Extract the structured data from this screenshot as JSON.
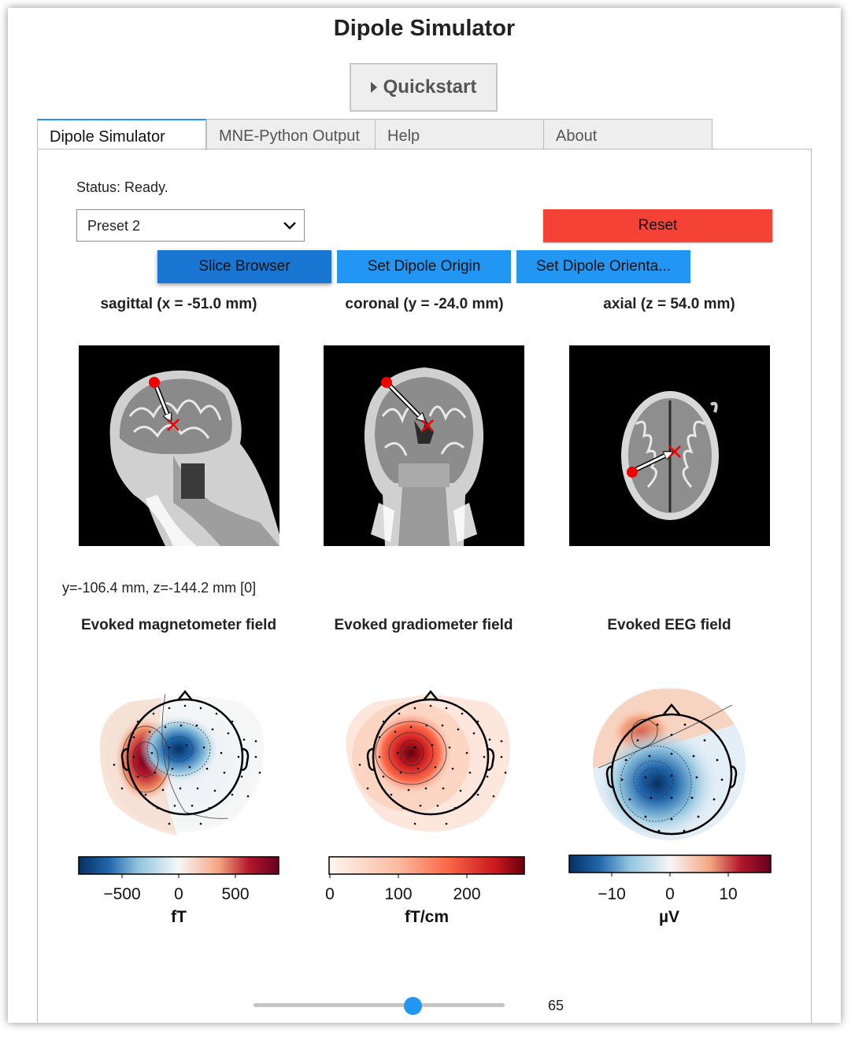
{
  "app": {
    "title": "Dipole Simulator"
  },
  "quickstart": {
    "label": "Quickstart"
  },
  "tabs": [
    {
      "label": "Dipole Simulator"
    },
    {
      "label": "MNE-Python Output"
    },
    {
      "label": "Help"
    },
    {
      "label": "About"
    }
  ],
  "status": {
    "text": "Status: Ready."
  },
  "preset": {
    "selected": "Preset 2"
  },
  "buttons": {
    "reset": "Reset",
    "slice_browser": "Slice Browser",
    "set_origin": "Set Dipole Origin",
    "set_orientation": "Set Dipole Orienta..."
  },
  "slices": {
    "sagittal": "sagittal (x = -51.0 mm)",
    "coronal": "coronal (y = -24.0 mm)",
    "axial": "axial (z = 54.0 mm)"
  },
  "cursor": {
    "text": "y=-106.4 mm, z=-144.2 mm [0]"
  },
  "fields": {
    "mag": {
      "title": "Evoked magnetometer field",
      "ticks": [
        "−500",
        "0",
        "500"
      ],
      "unit": "fT"
    },
    "grad": {
      "title": "Evoked gradiometer field",
      "ticks": [
        "0",
        "100",
        "200"
      ],
      "unit": "fT/cm"
    },
    "eeg": {
      "title": "Evoked EEG field",
      "ticks": [
        "−10",
        "0",
        "10"
      ],
      "unit": "µV"
    }
  },
  "colors": {
    "accent": "#2196f3",
    "accent_active": "#1976d2",
    "reset": "#f44336",
    "positive": "#b2182b",
    "negative": "#2166ac"
  },
  "slider": {
    "value": "65",
    "level_fraction": 0.6
  }
}
